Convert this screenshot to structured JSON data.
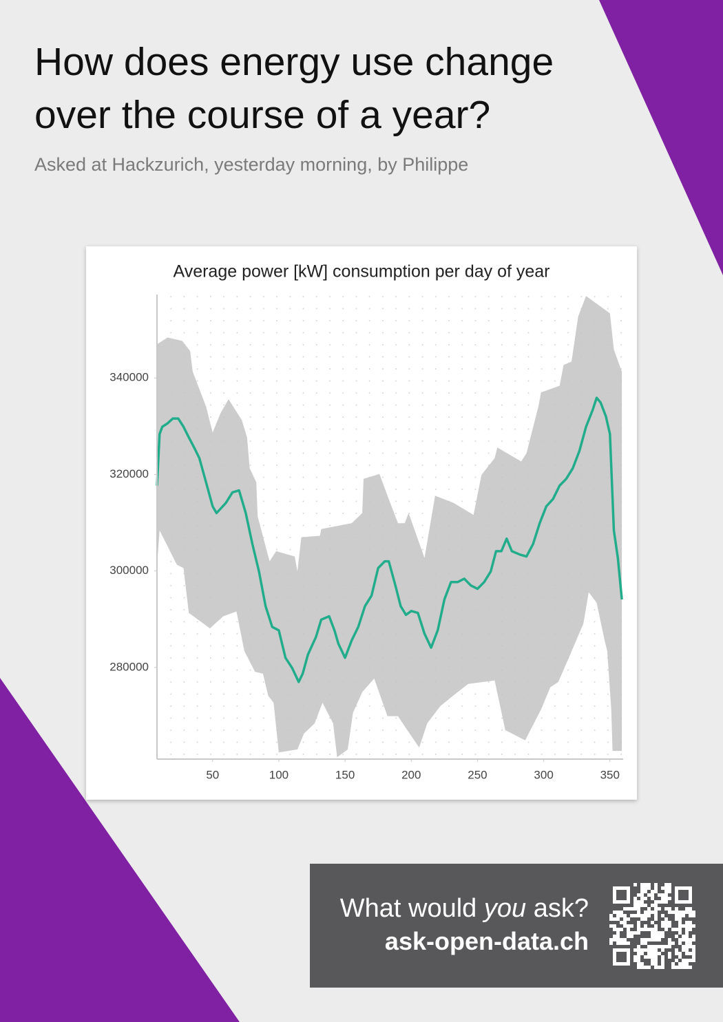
{
  "poster": {
    "title_lines": [
      "How does energy use change",
      "over the course of a year?"
    ],
    "subtitle": "Asked at Hackzurich, yesterday morning, by Philippe"
  },
  "chart_data": {
    "type": "line-band",
    "title": "Average power [kW] consumption per day of year",
    "xlim": [
      8,
      360
    ],
    "xticks": [
      50,
      100,
      150,
      200,
      250,
      300,
      350
    ],
    "ylim": [
      261000,
      357300
    ],
    "yticks": [
      280000,
      300000,
      320000,
      340000
    ],
    "grid": true,
    "series": [
      {
        "color": "#21ac8c",
        "x": [
          8,
          10,
          12,
          16,
          20,
          24,
          28,
          32,
          36,
          40,
          45,
          50,
          53,
          60,
          65,
          70,
          75,
          80,
          85,
          90,
          95,
          100,
          105,
          110,
          115,
          118,
          122,
          128,
          132,
          138,
          142,
          145,
          150,
          155,
          160,
          165,
          170,
          175,
          180,
          183,
          188,
          192,
          196,
          200,
          205,
          210,
          215,
          220,
          225,
          230,
          235,
          240,
          245,
          250,
          255,
          260,
          264,
          268,
          272,
          276,
          282,
          287,
          292,
          297,
          302,
          307,
          312,
          317,
          322,
          327,
          332,
          337,
          340,
          343,
          347,
          350,
          353,
          356,
          359
        ],
        "values": [
          317700,
          328400,
          329900,
          330600,
          331600,
          331600,
          329900,
          327700,
          325600,
          323400,
          318400,
          313400,
          312000,
          314100,
          316300,
          316700,
          312000,
          305600,
          299900,
          292700,
          288400,
          287700,
          282000,
          279900,
          277000,
          278700,
          282700,
          286300,
          289900,
          290600,
          287700,
          284900,
          282000,
          285600,
          288400,
          292700,
          294900,
          300600,
          302000,
          302000,
          297000,
          292700,
          290900,
          291700,
          291300,
          287000,
          284100,
          287700,
          294100,
          297700,
          297700,
          298400,
          297000,
          296300,
          297700,
          299900,
          304100,
          304100,
          306700,
          304100,
          303400,
          303000,
          305600,
          309900,
          313400,
          314900,
          317700,
          319100,
          321300,
          324900,
          329900,
          333400,
          335900,
          334900,
          332000,
          328400,
          308400,
          302700,
          294100
        ]
      }
    ],
    "band": {
      "color": "#cccccc",
      "upper": {
        "x": [
          8,
          16,
          27,
          33,
          35,
          45,
          50,
          56,
          62,
          72,
          76,
          78,
          83,
          84,
          93,
          98,
          112,
          114,
          117,
          131,
          132,
          155,
          163,
          164,
          176,
          182,
          190,
          195,
          198,
          210,
          218,
          232,
          247,
          253,
          263,
          265,
          283,
          287,
          296,
          298,
          312,
          315,
          321,
          326,
          332,
          350,
          353,
          359
        ],
        "values": [
          347000,
          348400,
          347700,
          345600,
          341300,
          334100,
          328700,
          332700,
          335600,
          331300,
          327700,
          321300,
          318400,
          311300,
          302000,
          304100,
          303000,
          299900,
          307000,
          307300,
          308700,
          309900,
          312000,
          319100,
          320100,
          315600,
          309900,
          309900,
          312000,
          302700,
          315600,
          314100,
          311600,
          319900,
          323400,
          325600,
          322700,
          324400,
          334100,
          337000,
          338400,
          342700,
          343400,
          352700,
          357000,
          353400,
          345900,
          341300
        ]
      },
      "lower": {
        "x": [
          8,
          10,
          23,
          28,
          32,
          48,
          58,
          68,
          74,
          82,
          88,
          92,
          96,
          100,
          114,
          119,
          127,
          133,
          141,
          144,
          152,
          156,
          163,
          172,
          182,
          190,
          197,
          206,
          212,
          222,
          235,
          243,
          263,
          271,
          286,
          298,
          305,
          311,
          319,
          330,
          334,
          340,
          346,
          348,
          351,
          352,
          359
        ],
        "values": [
          301300,
          308400,
          301300,
          300600,
          291300,
          288100,
          290600,
          291600,
          283400,
          279100,
          278700,
          274100,
          272700,
          262400,
          263000,
          266300,
          268400,
          272700,
          268400,
          261400,
          263000,
          270600,
          274900,
          277700,
          269900,
          269900,
          267000,
          263400,
          268400,
          272000,
          274900,
          276600,
          277300,
          267000,
          264900,
          271300,
          275900,
          277000,
          282000,
          289100,
          295600,
          293400,
          285600,
          283400,
          271300,
          262700,
          262700
        ]
      }
    }
  },
  "footer": {
    "prompt_before": "What would",
    "prompt_emphasis": "you",
    "prompt_after": "ask?",
    "url": "ask-open-data.ch"
  }
}
